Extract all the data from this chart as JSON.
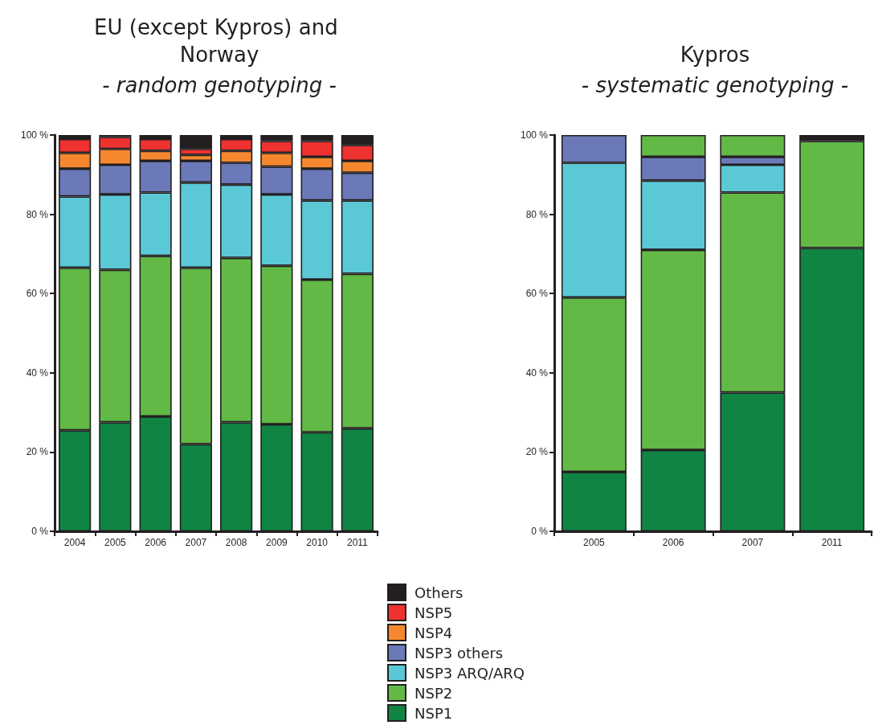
{
  "chart_data": [
    {
      "type": "bar",
      "stacked": true,
      "title": "EU (except Kypros) and Norway",
      "subtitle": "- random genotyping -",
      "legend": "bottom",
      "grid": false,
      "categories": [
        "2004",
        "2005",
        "2006",
        "2007",
        "2008",
        "2009",
        "2010",
        "2011"
      ],
      "ylim": [
        0,
        100
      ],
      "yticks": [
        {
          "value": 0,
          "label": "0 %"
        },
        {
          "value": 20,
          "label": "20 %"
        },
        {
          "value": 40,
          "label": "40 %"
        },
        {
          "value": 60,
          "label": "60 %"
        },
        {
          "value": 80,
          "label": "80 %"
        },
        {
          "value": 100,
          "label": "100 %"
        }
      ],
      "series": [
        {
          "name": "NSP1",
          "color": "#0f8443",
          "values": [
            25.5,
            27.5,
            29,
            22,
            27.5,
            27,
            25,
            26
          ]
        },
        {
          "name": "NSP2",
          "color": "#62b946",
          "values": [
            41,
            38.5,
            40.5,
            44.5,
            41.5,
            40,
            38.5,
            39
          ]
        },
        {
          "name": "NSP3 ARQ/ARQ",
          "color": "#5bc8d6",
          "values": [
            18,
            19,
            16,
            21.5,
            18.5,
            18,
            20,
            18.5
          ]
        },
        {
          "name": "NSP3 others",
          "color": "#6b79b9",
          "values": [
            7,
            7.5,
            8,
            5.5,
            5.5,
            7,
            8,
            7
          ]
        },
        {
          "name": "NSP4",
          "color": "#f5882e",
          "values": [
            4,
            4,
            2.5,
            1.5,
            3,
            3.5,
            3,
            3
          ]
        },
        {
          "name": "NSP5",
          "color": "#ef3130",
          "values": [
            3.5,
            3,
            3,
            1.5,
            3,
            3,
            4,
            4
          ]
        },
        {
          "name": "Others",
          "color": "#231f20",
          "values": [
            1,
            0.5,
            1,
            3.5,
            1,
            1.5,
            1.5,
            2.5
          ]
        }
      ]
    },
    {
      "type": "bar",
      "stacked": true,
      "title": "Kypros",
      "subtitle": "- systematic genotyping -",
      "legend": false,
      "grid": false,
      "categories": [
        "2005",
        "2006",
        "2007",
        "2011"
      ],
      "ylim": [
        0,
        100
      ],
      "yticks": [
        {
          "value": 0,
          "label": "0 %"
        },
        {
          "value": 20,
          "label": "20 %"
        },
        {
          "value": 40,
          "label": "40 %"
        },
        {
          "value": 60,
          "label": "60 %"
        },
        {
          "value": 80,
          "label": "80 %"
        },
        {
          "value": 100,
          "label": "100 %"
        }
      ],
      "series": [
        {
          "color": "#0f8443",
          "values": [
            15,
            20.5,
            35,
            71.5
          ]
        },
        {
          "color": "#62b946",
          "values": [
            44,
            50.5,
            50.5,
            27
          ]
        },
        {
          "color": "#5bc8d6",
          "values": [
            34,
            17.5,
            7,
            null
          ]
        },
        {
          "color": "#6b79b9",
          "values": [
            7,
            6,
            2,
            null
          ]
        },
        {
          "color": "#f5882e",
          "colors": [
            "#f5882e",
            "#62b946",
            "#62b946",
            "#f5882e"
          ],
          "values": [
            null,
            5.5,
            5.5,
            null
          ]
        },
        {
          "color": "#231f20",
          "values": [
            null,
            null,
            null,
            1.5
          ]
        }
      ]
    }
  ]
}
